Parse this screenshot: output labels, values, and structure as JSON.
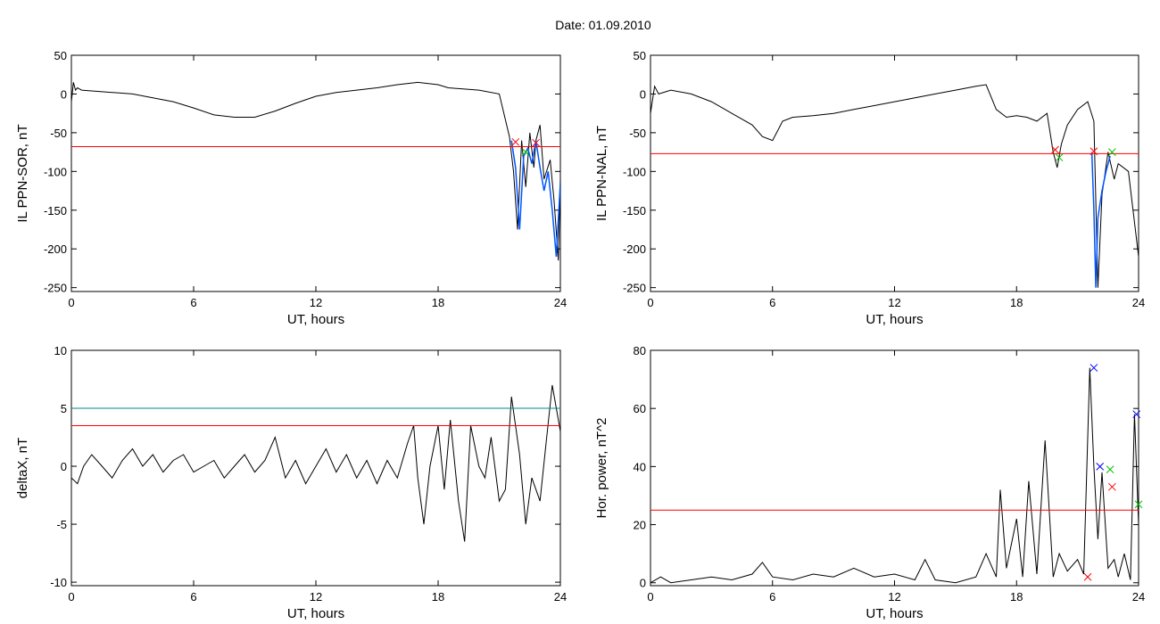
{
  "title": "Date:  01.09.2010",
  "colors": {
    "trace": "#000000",
    "threshold": "#ff0000",
    "threshold2": "#008b8b",
    "segment": "#0055ff",
    "marker_red": "#ff0000",
    "marker_green": "#00c000",
    "marker_blue": "#0000ff"
  },
  "chart_data": [
    {
      "type": "line",
      "xlabel": "UT, hours",
      "ylabel": "IL PPN-SOR, nT",
      "xlim": [
        0,
        24
      ],
      "ylim": [
        -255,
        50
      ],
      "xticks": [
        "0",
        "6",
        "12",
        "18",
        "24"
      ],
      "yticks": [
        "50",
        "0",
        "-50",
        "-100",
        "-150",
        "-200",
        "-250"
      ],
      "grid": false,
      "series": [
        {
          "x": [
            0,
            0.1,
            0.2,
            0.3,
            0.5,
            1,
            2,
            3,
            4,
            5,
            6,
            7,
            8,
            9,
            10,
            11,
            12,
            13,
            14,
            15,
            16,
            17,
            18,
            18.5,
            19,
            20,
            21,
            21.5,
            21.7,
            21.9,
            22.1,
            22.3,
            22.5,
            22.7,
            22.8,
            23,
            23.2,
            23.5,
            23.7,
            23.9,
            24
          ],
          "y": [
            -10,
            15,
            5,
            8,
            5,
            4,
            2,
            0,
            -5,
            -10,
            -18,
            -27,
            -30,
            -30,
            -22,
            -12,
            -3,
            2,
            5,
            8,
            12,
            15,
            12,
            8,
            7,
            5,
            0,
            -55,
            -100,
            -175,
            -60,
            -120,
            -50,
            -95,
            -60,
            -40,
            -110,
            -85,
            -140,
            -215,
            -110
          ]
        }
      ],
      "segments": [
        {
          "x": [
            21.6,
            21.8,
            22.0,
            22.2,
            22.4,
            22.6,
            22.8,
            23.0,
            23.2,
            23.4,
            23.6,
            23.8,
            24
          ],
          "y": [
            -60,
            -95,
            -175,
            -80,
            -70,
            -90,
            -60,
            -95,
            -125,
            -100,
            -150,
            -210,
            -115
          ]
        }
      ],
      "thresholds": [
        {
          "y": -68,
          "color": "red"
        }
      ],
      "markers": [
        {
          "x": 21.8,
          "y": -62,
          "color": "red"
        },
        {
          "x": 22.3,
          "y": -75,
          "color": "green"
        },
        {
          "x": 22.8,
          "y": -63,
          "color": "red"
        }
      ]
    },
    {
      "type": "line",
      "xlabel": "UT, hours",
      "ylabel": "IL PPN-NAL, nT",
      "xlim": [
        0,
        24
      ],
      "ylim": [
        -255,
        50
      ],
      "xticks": [
        "0",
        "6",
        "12",
        "18",
        "24"
      ],
      "yticks": [
        "50",
        "0",
        "-50",
        "-100",
        "-150",
        "-200",
        "-250"
      ],
      "grid": false,
      "series": [
        {
          "x": [
            0,
            0.2,
            0.4,
            1,
            2,
            3,
            4,
            5,
            5.5,
            6,
            6.5,
            7,
            8,
            9,
            10,
            11,
            12,
            13,
            14,
            15,
            16,
            16.5,
            17,
            17.5,
            18,
            18.5,
            19,
            19.5,
            19.8,
            20,
            20.2,
            20.5,
            21,
            21.5,
            21.8,
            22,
            22.2,
            22.5,
            22.8,
            23,
            23.5,
            24
          ],
          "y": [
            -25,
            10,
            0,
            5,
            0,
            -10,
            -25,
            -40,
            -55,
            -60,
            -35,
            -30,
            -28,
            -25,
            -20,
            -15,
            -10,
            -5,
            0,
            5,
            10,
            12,
            -20,
            -30,
            -28,
            -30,
            -35,
            -25,
            -75,
            -95,
            -65,
            -40,
            -20,
            -10,
            -35,
            -250,
            -130,
            -75,
            -110,
            -90,
            -100,
            -210
          ]
        }
      ],
      "segments": [
        {
          "x": [
            21.7,
            21.8,
            21.9,
            22.0,
            22.2,
            22.4,
            22.6
          ],
          "y": [
            -75,
            -150,
            -250,
            -160,
            -125,
            -100,
            -80
          ]
        }
      ],
      "thresholds": [
        {
          "y": -77,
          "color": "red"
        }
      ],
      "markers": [
        {
          "x": 19.9,
          "y": -72,
          "color": "red"
        },
        {
          "x": 20.1,
          "y": -82,
          "color": "green"
        },
        {
          "x": 21.8,
          "y": -74,
          "color": "red"
        },
        {
          "x": 22.7,
          "y": -75,
          "color": "green"
        }
      ]
    },
    {
      "type": "line",
      "xlabel": "UT, hours",
      "ylabel": "deltaX, nT",
      "xlim": [
        0,
        24
      ],
      "ylim": [
        -10.3,
        10
      ],
      "xticks": [
        "0",
        "6",
        "12",
        "18",
        "24"
      ],
      "yticks": [
        "10",
        "5",
        "0",
        "-5",
        "-10"
      ],
      "grid": false,
      "series": [
        {
          "x": [
            0,
            0.3,
            0.6,
            1,
            1.5,
            2,
            2.5,
            3,
            3.5,
            4,
            4.5,
            5,
            5.5,
            6,
            6.5,
            7,
            7.5,
            8,
            8.5,
            9,
            9.5,
            10,
            10.5,
            11,
            11.5,
            12,
            12.5,
            13,
            13.5,
            14,
            14.5,
            15,
            15.5,
            16,
            16.5,
            16.8,
            17,
            17.3,
            17.6,
            18,
            18.3,
            18.6,
            19,
            19.3,
            19.6,
            20,
            20.3,
            20.6,
            21,
            21.3,
            21.6,
            22,
            22.3,
            22.6,
            23,
            23.3,
            23.6,
            24
          ],
          "y": [
            -1,
            -1.5,
            0,
            1,
            0,
            -1,
            0.5,
            1.5,
            0,
            1,
            -0.5,
            0.5,
            1,
            -0.5,
            0,
            0.5,
            -1,
            0,
            1,
            -0.5,
            0.5,
            2.5,
            -1,
            0.5,
            -1.5,
            0,
            1.5,
            -0.5,
            1,
            -1,
            0.5,
            -1.5,
            0.5,
            -1,
            2,
            3.5,
            -1,
            -5,
            0,
            3.5,
            -2,
            4,
            -3,
            -6.5,
            3.5,
            0,
            -1,
            2.5,
            -3,
            -2,
            6,
            1,
            -5,
            -1,
            -3,
            2,
            7,
            3
          ]
        }
      ],
      "thresholds": [
        {
          "y": 5,
          "color": "teal"
        },
        {
          "y": 3.5,
          "color": "red"
        }
      ],
      "markers": []
    },
    {
      "type": "line",
      "xlabel": "UT, hours",
      "ylabel": "Hor. power, nT^2",
      "xlim": [
        0,
        24
      ],
      "ylim": [
        -1,
        80
      ],
      "xticks": [
        "0",
        "6",
        "12",
        "18",
        "24"
      ],
      "yticks": [
        "80",
        "60",
        "40",
        "20",
        "0"
      ],
      "grid": false,
      "series": [
        {
          "x": [
            0,
            0.5,
            1,
            2,
            3,
            4,
            5,
            5.5,
            6,
            7,
            8,
            9,
            10,
            11,
            12,
            13,
            13.5,
            14,
            15,
            16,
            16.5,
            17,
            17.2,
            17.5,
            18,
            18.3,
            18.6,
            19,
            19.4,
            19.8,
            20.1,
            20.5,
            21,
            21.3,
            21.6,
            21.8,
            22,
            22.2,
            22.5,
            22.8,
            23,
            23.3,
            23.6,
            23.8,
            24
          ],
          "y": [
            0,
            2,
            0,
            1,
            2,
            1,
            3,
            7,
            2,
            1,
            3,
            2,
            5,
            2,
            3,
            1,
            8,
            1,
            0,
            2,
            10,
            2,
            32,
            5,
            22,
            2,
            35,
            3,
            49,
            2,
            10,
            4,
            8,
            3,
            74,
            40,
            15,
            38,
            5,
            8,
            2,
            10,
            1,
            58,
            20
          ]
        }
      ],
      "thresholds": [
        {
          "y": 25,
          "color": "red"
        }
      ],
      "markers": [
        {
          "x": 21.5,
          "y": 2,
          "color": "red"
        },
        {
          "x": 21.8,
          "y": 74,
          "color": "blue"
        },
        {
          "x": 22.1,
          "y": 40,
          "color": "blue"
        },
        {
          "x": 22.6,
          "y": 39,
          "color": "green"
        },
        {
          "x": 22.7,
          "y": 33,
          "color": "red"
        },
        {
          "x": 23.9,
          "y": 58,
          "color": "blue"
        },
        {
          "x": 24,
          "y": 27,
          "color": "green"
        }
      ]
    }
  ]
}
